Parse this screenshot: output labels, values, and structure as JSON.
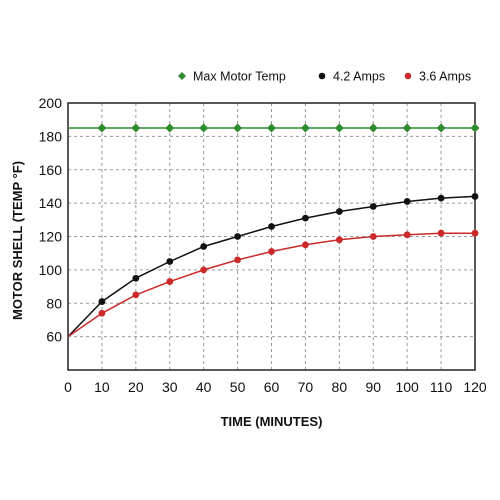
{
  "chart_data": {
    "type": "line",
    "title": "",
    "xlabel": "TIME (MINUTES)",
    "ylabel": "MOTOR SHELL (TEMP °F)",
    "x": [
      0,
      10,
      20,
      30,
      40,
      50,
      60,
      70,
      80,
      90,
      100,
      110,
      120
    ],
    "xlim": [
      0,
      120
    ],
    "ylim": [
      40,
      200
    ],
    "x_ticks": [
      "0",
      "10",
      "20",
      "30",
      "40",
      "50",
      "60",
      "70",
      "80",
      "90",
      "100",
      "110",
      "120"
    ],
    "y_ticks": [
      "60",
      "80",
      "100",
      "120",
      "140",
      "160",
      "180",
      "200"
    ],
    "grid": true,
    "legend_position": "top-right",
    "series": [
      {
        "name": "Max Motor Temp",
        "color": "#2e8b2e",
        "marker": "diamond",
        "values": [
          null,
          185,
          185,
          185,
          185,
          185,
          185,
          185,
          185,
          185,
          185,
          185,
          185
        ],
        "line_start": 185
      },
      {
        "name": "4.2 Amps",
        "color": "#111111",
        "marker": "circle",
        "values": [
          null,
          81,
          95,
          105,
          114,
          120,
          126,
          131,
          135,
          138,
          141,
          143,
          144
        ],
        "line_start": 60
      },
      {
        "name": "3.6 Amps",
        "color": "#cc2a2a",
        "marker": "circle",
        "values": [
          null,
          74,
          85,
          93,
          100,
          106,
          111,
          115,
          118,
          120,
          121,
          122,
          122
        ],
        "line_start": 60
      }
    ]
  }
}
